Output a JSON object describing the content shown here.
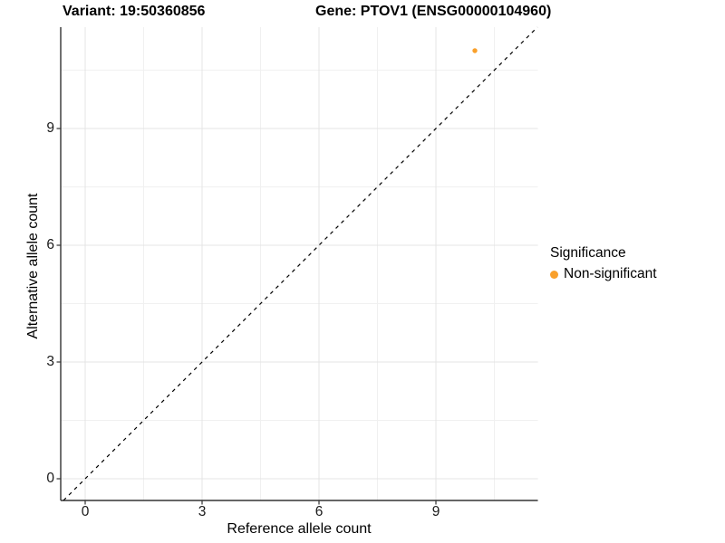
{
  "chart_data": {
    "type": "scatter",
    "title_left": "Variant: 19:50360856",
    "title_right": "Gene: PTOV1 (ENSG00000104960)",
    "xlabel": "Reference allele count",
    "ylabel": "Alternative allele count",
    "x_ticks": [
      0,
      3,
      6,
      9
    ],
    "y_ticks": [
      0,
      3,
      6,
      9
    ],
    "x_minor_ticks": [
      1.5,
      4.5,
      7.5,
      10.5
    ],
    "y_minor_ticks": [
      1.5,
      4.5,
      7.5,
      10.5
    ],
    "xlim": [
      -0.63,
      11.62
    ],
    "ylim": [
      -0.56,
      11.6
    ],
    "grid": true,
    "legend_position": "right",
    "series": [
      {
        "name": "Non-significant",
        "color": "#F9A02B",
        "points": [
          [
            10,
            11
          ]
        ],
        "point_radius": 2.7
      }
    ],
    "reference_line": {
      "slope": 1,
      "intercept": 0,
      "style": "dashed",
      "color": "#000000"
    }
  },
  "legend": {
    "title": "Significance",
    "items": [
      {
        "label": "Non-significant",
        "color": "#F9A02B"
      }
    ]
  },
  "colors": {
    "background": "#ffffff",
    "grid_major": "#e4e4e4",
    "grid_minor": "#f0f0f0",
    "axis": "#333333",
    "tick_text": "#1a1a1a",
    "point": "#F9A02B",
    "reference_line": "#000000"
  }
}
